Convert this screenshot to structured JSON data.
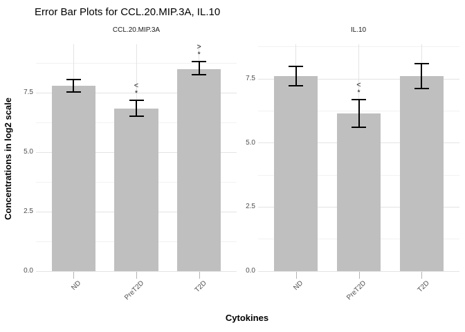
{
  "chart_data": {
    "type": "bar",
    "title": "Error Bar Plots for CCL.20.MIP.3A, IL.10",
    "ylabel": "Concentrations in log2 scale",
    "xlabel": "Cytokines",
    "categories": [
      "ND",
      "PreT2D",
      "T2D"
    ],
    "ytick_labels": [
      "0.0",
      "2.5",
      "5.0",
      "7.5"
    ],
    "grid": "major-and-minor",
    "legend": "none",
    "error_bars": "mean +/- se, black caps",
    "colors": {
      "bar_fill": "#bfbfbf",
      "error_bar": "#000000",
      "grid_major": "#e3e3e3",
      "grid_minor": "#f1f1f1",
      "tick_label": "#4d4d4d",
      "axis_tick": "#b3b3b3",
      "text": "#1a1a1a"
    },
    "panels": [
      {
        "facet": "CCL.20.MIP.3A",
        "ylim": [
          0,
          9.55
        ],
        "bars": [
          {
            "category": "ND",
            "mean": 7.8,
            "err_low": 7.54,
            "err_high": 8.06,
            "annotation": []
          },
          {
            "category": "PreT2D",
            "mean": 6.85,
            "err_low": 6.53,
            "err_high": 7.2,
            "annotation": [
              "<",
              "*"
            ]
          },
          {
            "category": "T2D",
            "mean": 8.5,
            "err_low": 8.26,
            "err_high": 8.83,
            "annotation": [
              ">",
              "*"
            ]
          }
        ]
      },
      {
        "facet": "IL.10",
        "ylim": [
          0,
          8.85
        ],
        "bars": [
          {
            "category": "ND",
            "mean": 7.6,
            "err_low": 7.22,
            "err_high": 7.99,
            "annotation": []
          },
          {
            "category": "PreT2D",
            "mean": 6.15,
            "err_low": 5.6,
            "err_high": 6.68,
            "annotation": [
              "<",
              "*"
            ]
          },
          {
            "category": "T2D",
            "mean": 7.6,
            "err_low": 7.11,
            "err_high": 8.09,
            "annotation": []
          }
        ]
      }
    ]
  }
}
